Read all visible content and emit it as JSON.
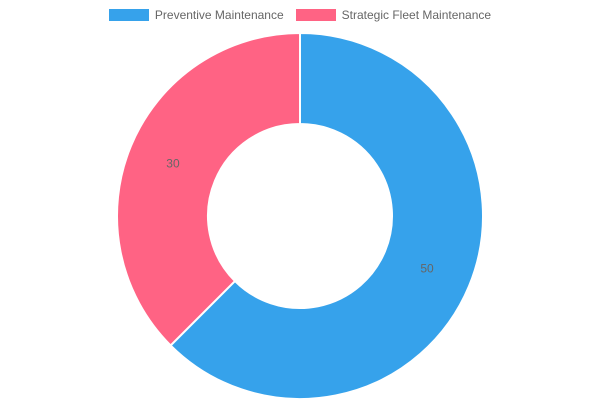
{
  "chart_data": {
    "type": "pie",
    "variant": "doughnut",
    "labels": [
      "Preventive Maintenance",
      "Strategic Fleet Maintenance"
    ],
    "values": [
      50,
      30
    ],
    "colors": [
      "#36a2eb",
      "#ff6384"
    ],
    "legend_position": "top"
  }
}
